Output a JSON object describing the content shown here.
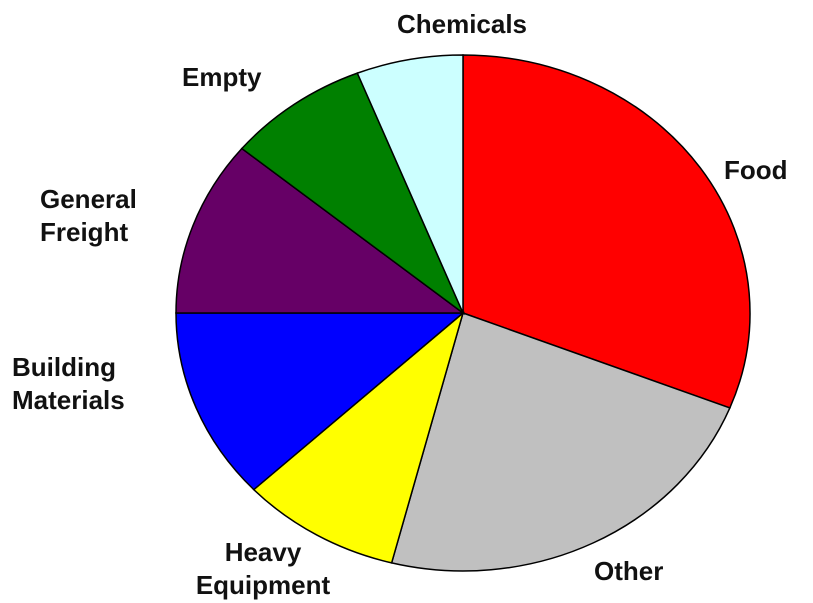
{
  "chart_data": {
    "type": "pie",
    "categories": [
      "Food",
      "Other",
      "Heavy Equipment",
      "Building Materials",
      "General Freight",
      "Empty",
      "Chemicals"
    ],
    "values": [
      31,
      23,
      9,
      12,
      11,
      8,
      6
    ],
    "colors": [
      "#ff0000",
      "#c0c0c0",
      "#ffff00",
      "#0000ff",
      "#660066",
      "#008000",
      "#ccffff"
    ]
  }
}
